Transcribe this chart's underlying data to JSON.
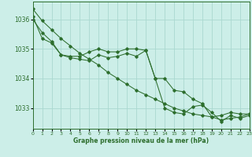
{
  "title": "Graphe pression niveau de la mer (hPa)",
  "background_color": "#cceee8",
  "grid_color": "#aad8d0",
  "line_color": "#2d6e2d",
  "xlim": [
    0,
    23
  ],
  "ylim": [
    1032.3,
    1036.6
  ],
  "yticks": [
    1033,
    1034,
    1035,
    1036
  ],
  "xticks": [
    0,
    1,
    2,
    3,
    4,
    5,
    6,
    7,
    8,
    9,
    10,
    11,
    12,
    13,
    14,
    15,
    16,
    17,
    18,
    19,
    20,
    21,
    22,
    23
  ],
  "series1_straight": {
    "x": [
      0,
      1,
      2,
      3,
      4,
      5,
      6,
      7,
      8,
      9,
      10,
      11,
      12,
      13,
      14,
      15,
      16,
      17,
      18,
      19,
      20,
      21,
      22,
      23
    ],
    "y": [
      1036.35,
      1035.95,
      1035.65,
      1035.35,
      1035.1,
      1034.85,
      1034.65,
      1034.45,
      1034.2,
      1034.0,
      1033.8,
      1033.6,
      1033.45,
      1033.3,
      1033.15,
      1033.0,
      1032.9,
      1032.8,
      1032.75,
      1032.7,
      1032.6,
      1032.65,
      1032.7,
      1032.8
    ]
  },
  "series2_bump": {
    "x": [
      0,
      1,
      2,
      3,
      4,
      5,
      6,
      7,
      8,
      9,
      10,
      11,
      12,
      13,
      14,
      15,
      16,
      17,
      18,
      19,
      20,
      21,
      22,
      23
    ],
    "y": [
      1036.0,
      1035.55,
      1035.25,
      1034.8,
      1034.75,
      1034.75,
      1034.9,
      1035.0,
      1034.9,
      1034.9,
      1035.0,
      1035.0,
      1034.95,
      1034.0,
      1034.0,
      1033.6,
      1033.55,
      1033.3,
      1033.15,
      1032.7,
      1032.75,
      1032.85,
      1032.8,
      1032.8
    ]
  },
  "series3_drop": {
    "x": [
      0,
      1,
      2,
      3,
      4,
      5,
      6,
      7,
      8,
      9,
      10,
      11,
      12,
      13,
      14,
      15,
      16,
      17,
      18,
      19,
      20,
      21,
      22,
      23
    ],
    "y": [
      1036.1,
      1035.35,
      1035.2,
      1034.8,
      1034.7,
      1034.65,
      1034.6,
      1034.8,
      1034.7,
      1034.75,
      1034.85,
      1034.75,
      1034.95,
      1034.0,
      1033.0,
      1032.85,
      1032.8,
      1033.05,
      1033.1,
      1032.85,
      1032.55,
      1032.75,
      1032.65,
      1032.75
    ]
  }
}
